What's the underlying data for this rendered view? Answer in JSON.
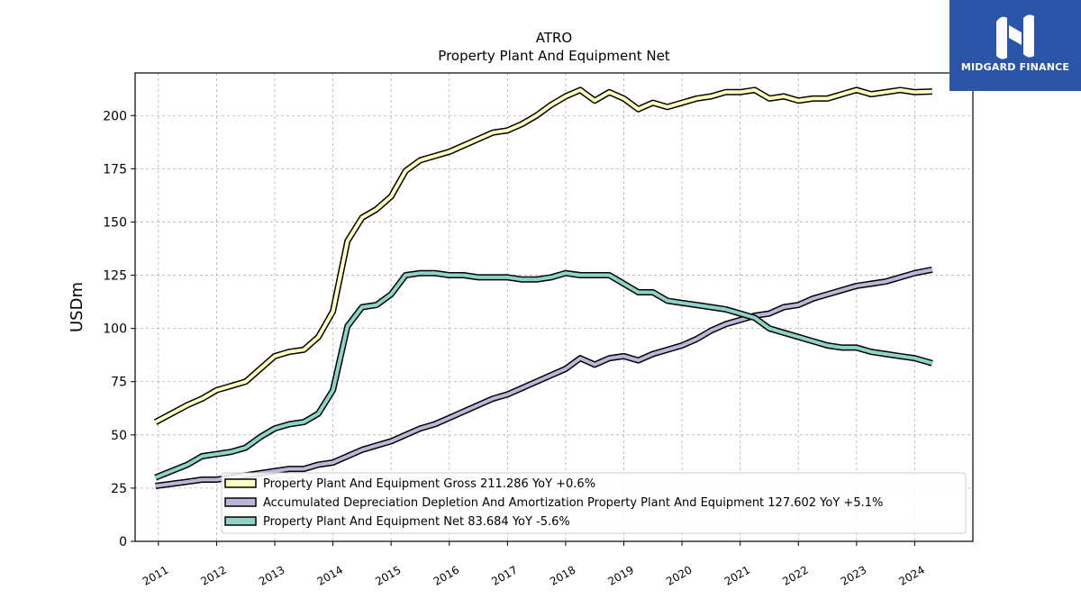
{
  "brand": {
    "name": "MIDGARD FINANCE",
    "color": "#2b56a7"
  },
  "chart_data": {
    "type": "line",
    "title": "ATRO",
    "subtitle": "Property Plant And Equipment Net",
    "ylabel": "USDm",
    "xlabel": "",
    "ylim": [
      0,
      220
    ],
    "xlim": [
      2010.6,
      2025.0
    ],
    "grid": true,
    "legend_position": "bottom-right",
    "yticks": [
      0,
      25,
      50,
      75,
      100,
      125,
      150,
      175,
      200
    ],
    "xticks": [
      2011,
      2012,
      2013,
      2014,
      2015,
      2016,
      2017,
      2018,
      2019,
      2020,
      2021,
      2022,
      2023,
      2024
    ],
    "xtick_labels": [
      "2011",
      "2012",
      "2013",
      "2014",
      "2015",
      "2016",
      "2017",
      "2018",
      "2019",
      "2020",
      "2021",
      "2022",
      "2023",
      "2024"
    ],
    "x": [
      2010.95,
      2011.5,
      2011.75,
      2012.0,
      2012.25,
      2012.5,
      2012.75,
      2013.0,
      2013.25,
      2013.5,
      2013.75,
      2014.0,
      2014.25,
      2014.5,
      2014.75,
      2015.0,
      2015.25,
      2015.5,
      2015.75,
      2016.0,
      2016.25,
      2016.5,
      2016.75,
      2017.0,
      2017.25,
      2017.5,
      2017.75,
      2018.0,
      2018.25,
      2018.5,
      2018.75,
      2019.0,
      2019.25,
      2019.5,
      2019.75,
      2020.0,
      2020.25,
      2020.5,
      2020.75,
      2021.0,
      2021.25,
      2021.5,
      2021.75,
      2022.0,
      2022.25,
      2022.5,
      2022.75,
      2023.0,
      2023.25,
      2023.5,
      2023.75,
      2024.0,
      2024.3
    ],
    "series": [
      {
        "name": "Property Plant And Equipment Gross",
        "legend": "Property Plant And Equipment Gross  211.286 YoY +0.6%",
        "color": "#ffffc0",
        "values": [
          56,
          64,
          67,
          71,
          73,
          75,
          81,
          87,
          89,
          90,
          96,
          108,
          141,
          152,
          156,
          162,
          174,
          179,
          181,
          183,
          186,
          189,
          192,
          193,
          196,
          200,
          205,
          209,
          212,
          207,
          211,
          208,
          203,
          206,
          204,
          206,
          208,
          209,
          211,
          211,
          212,
          208,
          209,
          207,
          208,
          208,
          210,
          212,
          210,
          211,
          212,
          211,
          211.286
        ]
      },
      {
        "name": "Accumulated Depreciation Depletion And Amortization Property Plant And Equipment",
        "legend": "Accumulated Depreciation Depletion And Amortization Property Plant And Equipment  127.602 YoY +5.1%",
        "color": "#bcb7d8",
        "values": [
          26,
          28,
          29,
          29,
          30,
          31,
          32,
          33,
          34,
          34,
          36,
          37,
          40,
          43,
          45,
          47,
          50,
          53,
          55,
          58,
          61,
          64,
          67,
          69,
          72,
          75,
          78,
          81,
          86,
          83,
          86,
          87,
          85,
          88,
          90,
          92,
          95,
          99,
          102,
          104,
          106,
          107,
          110,
          111,
          114,
          116,
          118,
          120,
          121,
          122,
          124,
          126,
          127.602
        ]
      },
      {
        "name": "Property Plant And Equipment Net",
        "legend": "Property Plant And Equipment Net  83.684 YoY -5.6%",
        "color": "#8dd3c7",
        "values": [
          30,
          36,
          40,
          41,
          42,
          44,
          49,
          53,
          55,
          56,
          60,
          71,
          101,
          110,
          111,
          116,
          125,
          126,
          126,
          125,
          125,
          124,
          124,
          124,
          123,
          123,
          124,
          126,
          125,
          125,
          125,
          121,
          117,
          117,
          113,
          112,
          111,
          110,
          109,
          107,
          105,
          100,
          98,
          96,
          94,
          92,
          91,
          91,
          89,
          88,
          87,
          86,
          83.684
        ]
      }
    ]
  }
}
